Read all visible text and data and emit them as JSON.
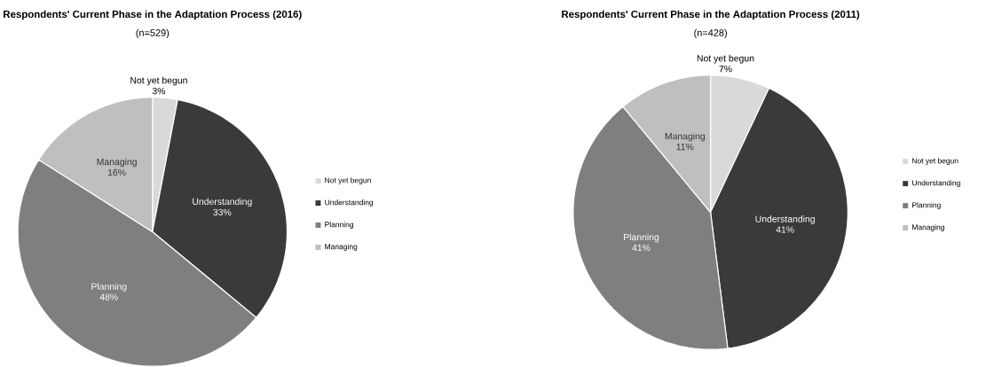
{
  "chart_data": [
    {
      "type": "pie",
      "title": "Respondents' Current Phase in the Adaptation Process (2016)",
      "subtitle": "(n=529)",
      "categories": [
        "Not yet begun",
        "Understanding",
        "Planning",
        "Managing"
      ],
      "values": [
        3,
        33,
        48,
        16
      ],
      "value_labels": [
        "3%",
        "33%",
        "48%",
        "16%"
      ],
      "colors": [
        "#d9d9d9",
        "#3a3a3a",
        "#7f7f7f",
        "#bfbfbf"
      ],
      "legend": "right"
    },
    {
      "type": "pie",
      "title": "Respondents' Current Phase in the Adaptation Process (2011)",
      "subtitle": "(n=428)",
      "categories": [
        "Not yet begun",
        "Understanding",
        "Planning",
        "Managing"
      ],
      "values": [
        7,
        41,
        41,
        11
      ],
      "value_labels": [
        "7%",
        "41%",
        "41%",
        "11%"
      ],
      "colors": [
        "#d9d9d9",
        "#3a3a3a",
        "#7f7f7f",
        "#bfbfbf"
      ],
      "legend": "right"
    }
  ]
}
